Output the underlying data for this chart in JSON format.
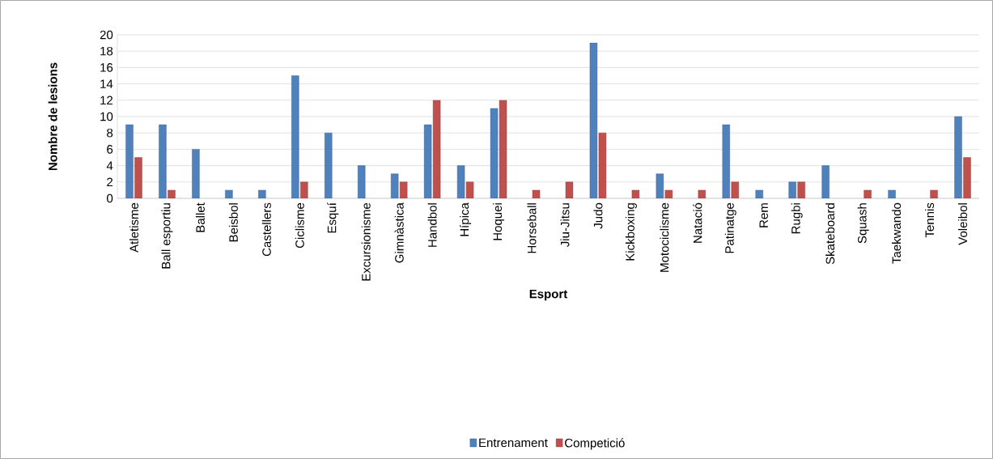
{
  "chart_data": {
    "type": "bar",
    "xlabel": "Esport",
    "ylabel": "Nombre de lesions",
    "categories": [
      "Atletisme",
      "Ball esportiu",
      "Ballet",
      "Beisbol",
      "Castellers",
      "Ciclisme",
      "Esquí",
      "Excursionisme",
      "Gimnàstica",
      "Handbol",
      "Hípica",
      "Hoquei",
      "Horseball",
      "Jiu-Jitsu",
      "Judo",
      "Kickboxing",
      "Motociclisme",
      "Natació",
      "Patinatge",
      "Rem",
      "Rugbi",
      "Skateboard",
      "Squash",
      "Taekwando",
      "Tennis",
      "Voleibol"
    ],
    "series": [
      {
        "name": "Entrenament",
        "color": "#4f81bd",
        "values": [
          9,
          9,
          6,
          1,
          1,
          15,
          8,
          4,
          3,
          9,
          4,
          11,
          null,
          null,
          19,
          null,
          3,
          null,
          9,
          1,
          2,
          4,
          null,
          1,
          null,
          10
        ]
      },
      {
        "name": "Competició",
        "color": "#c0504d",
        "values": [
          5,
          1,
          null,
          null,
          null,
          2,
          null,
          null,
          2,
          12,
          2,
          12,
          1,
          2,
          8,
          1,
          1,
          1,
          2,
          null,
          2,
          null,
          1,
          null,
          1,
          5
        ]
      }
    ],
    "ylim": [
      0,
      20
    ],
    "yticks": [
      0,
      2,
      4,
      6,
      8,
      10,
      12,
      14,
      16,
      18,
      20
    ],
    "grid": "y",
    "legend": "bottom"
  }
}
